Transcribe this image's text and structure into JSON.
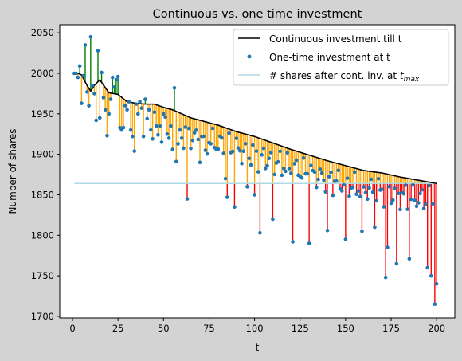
{
  "chart_data": {
    "type": "scatter",
    "title": "Continuous vs. one time investment",
    "xlabel": "t",
    "ylabel": "Number of shares",
    "xlim": [
      -7,
      210
    ],
    "ylim": [
      1698,
      2060
    ],
    "xticks": [
      0,
      25,
      50,
      75,
      100,
      125,
      150,
      175,
      200
    ],
    "yticks": [
      1700,
      1750,
      1800,
      1850,
      1900,
      1950,
      2000,
      2050
    ],
    "xtick_labels": [
      "0",
      "25",
      "50",
      "75",
      "100",
      "125",
      "150",
      "175",
      "200"
    ],
    "ytick_labels": [
      "1700",
      "1750",
      "1800",
      "1850",
      "1900",
      "1950",
      "2000",
      "2050"
    ],
    "grid": false,
    "legend_placement": "upper-right",
    "hline": {
      "y": 1864,
      "x_range": [
        1,
        200
      ],
      "color": "#add8e6"
    },
    "continuous_series": {
      "name": "Continuous investment till t",
      "color": "#000000",
      "x": [
        1,
        3,
        5,
        8,
        10,
        12,
        15,
        20,
        25,
        30,
        35,
        40,
        45,
        50,
        55,
        60,
        65,
        70,
        75,
        80,
        85,
        90,
        95,
        100,
        110,
        120,
        130,
        140,
        150,
        160,
        170,
        180,
        190,
        200
      ],
      "y": [
        2000,
        2000,
        1998,
        1985,
        1978,
        1985,
        1992,
        1976,
        1974,
        1965,
        1963,
        1962,
        1962,
        1958,
        1955,
        1950,
        1945,
        1942,
        1939,
        1936,
        1932,
        1928,
        1925,
        1922,
        1914,
        1906,
        1899,
        1892,
        1886,
        1880,
        1877,
        1872,
        1868,
        1864
      ]
    },
    "one_time_series": {
      "name": "One-time investment at t",
      "color": "#1f77b4",
      "anchors_x": [
        1,
        2,
        3,
        4,
        5,
        6,
        7,
        8,
        9,
        10,
        11,
        12,
        13,
        14,
        15,
        16,
        17,
        18,
        19,
        20,
        21,
        22,
        23,
        24,
        25,
        26,
        27,
        28,
        29,
        30,
        31,
        32,
        33,
        34,
        35,
        36,
        37,
        38,
        39,
        40,
        41,
        42,
        43,
        44,
        45,
        46,
        47,
        48,
        49,
        50,
        51,
        52,
        53,
        54,
        55,
        56,
        57,
        58,
        59,
        60,
        63,
        70,
        73,
        84,
        85,
        89,
        96,
        100,
        103,
        110,
        121,
        130,
        140,
        150,
        159,
        166,
        172,
        173,
        178,
        185,
        195,
        197,
        199,
        200
      ],
      "anchors_y": [
        2000,
        2000,
        1995,
        2009,
        1963,
        1997,
        2035,
        1977,
        1960,
        2045,
        1985,
        1975,
        1942,
        2028,
        1945,
        2001,
        1970,
        1955,
        1923,
        1950,
        1968,
        1995,
        1983,
        1992,
        1996,
        1933,
        1930,
        1933,
        1960,
        1955,
        1965,
        1930,
        1922,
        1904,
        1962,
        1950,
        1965,
        1957,
        1922,
        1968,
        1944,
        1955,
        1930,
        1919,
        1952,
        1935,
        1924,
        1935,
        1915,
        1950,
        1946,
        1925,
        1920,
        1935,
        1906,
        1982,
        1891,
        1913,
        1930,
        1920,
        1845,
        1890,
        1905,
        1870,
        1847,
        1835,
        1860,
        1850,
        1803,
        1820,
        1792,
        1790,
        1806,
        1795,
        1805,
        1810,
        1748,
        1785,
        1765,
        1771,
        1760,
        1750,
        1715,
        1740
      ],
      "amplitude": 42,
      "n_points": 200
    },
    "legend_entries": [
      "Continuous investment till t",
      "One-time investment at t",
      "# shares after cont. inv. at "
    ],
    "legend_math_sub": "max",
    "stem_colors": {
      "above_continuous": "#008000",
      "below_continuous": "#ffa500",
      "below_hline": "#ff0000"
    }
  }
}
